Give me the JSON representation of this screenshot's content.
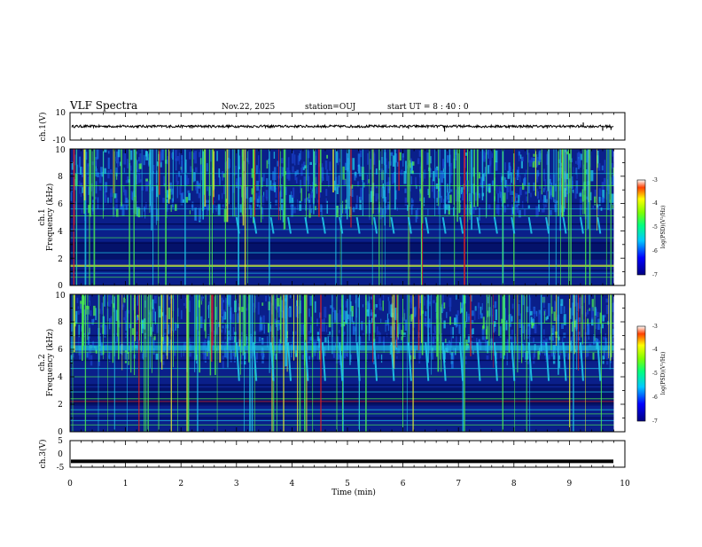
{
  "header": {
    "title": "VLF Spectra",
    "date": "Nov.22, 2025",
    "station": "station=OUJ",
    "start_ut": "start  UT =  8 : 40 : 0"
  },
  "chart_data": [
    {
      "type": "line",
      "name": "ch1-waveform",
      "ylabel": "ch.1(V)",
      "ylim": [
        -10,
        10
      ],
      "yticks": [
        "10",
        "-10"
      ],
      "baseline": 0,
      "spikes": [
        {
          "t": 2.2,
          "v": -1.5
        },
        {
          "t": 3.6,
          "v": -1.3
        },
        {
          "t": 6.1,
          "v": -1.8
        },
        {
          "t": 6.75,
          "v": -3.8
        },
        {
          "t": 8.6,
          "v": -1.5
        },
        {
          "t": 9.25,
          "v": 2.8
        },
        {
          "t": 9.6,
          "v": -3.2
        },
        {
          "t": 9.75,
          "v": -2.6
        }
      ]
    },
    {
      "type": "heatmap",
      "name": "ch1-spectrogram",
      "ylabel_top": "ch.1",
      "ylabel": "Frequency (kHz)",
      "ylim": [
        0,
        10
      ],
      "yticks": [
        "0",
        "2",
        "4",
        "6",
        "8",
        "10"
      ],
      "colorbar": {
        "label": "log(PSD)(V²/Hz)",
        "range": [
          -7,
          -3
        ],
        "ticks": [
          "-3",
          "-4",
          "-5",
          "-6",
          "-7"
        ]
      }
    },
    {
      "type": "heatmap",
      "name": "ch2-spectrogram",
      "ylabel_top": "ch.2",
      "ylabel": "Frequency (kHz)",
      "ylim": [
        0,
        10
      ],
      "yticks": [
        "0",
        "2",
        "4",
        "6",
        "8",
        "10"
      ],
      "colorbar": {
        "label": "log(PSD)(V²/Hz)",
        "range": [
          -7,
          -3
        ],
        "ticks": [
          "-3",
          "-4",
          "-5",
          "-6",
          "-7"
        ]
      }
    },
    {
      "type": "line",
      "name": "ch3-waveform",
      "ylabel": "ch.3(V)",
      "ylim": [
        -5,
        5
      ],
      "yticks": [
        "5",
        "0",
        "-5"
      ],
      "baseline": -2.8
    }
  ],
  "xaxis": {
    "label": "Time  (min)",
    "range": [
      0,
      10
    ],
    "ticks": [
      "0",
      "1",
      "2",
      "3",
      "4",
      "5",
      "6",
      "7",
      "8",
      "9",
      "10"
    ],
    "data_end": 9.8
  },
  "colors": {
    "spectrum_bg": "#0a1f8a",
    "deep_blue": "#000a55",
    "cyan": "#20c8e8",
    "green": "#4cf050",
    "yellow": "#e8f030",
    "red": "#e02020"
  }
}
